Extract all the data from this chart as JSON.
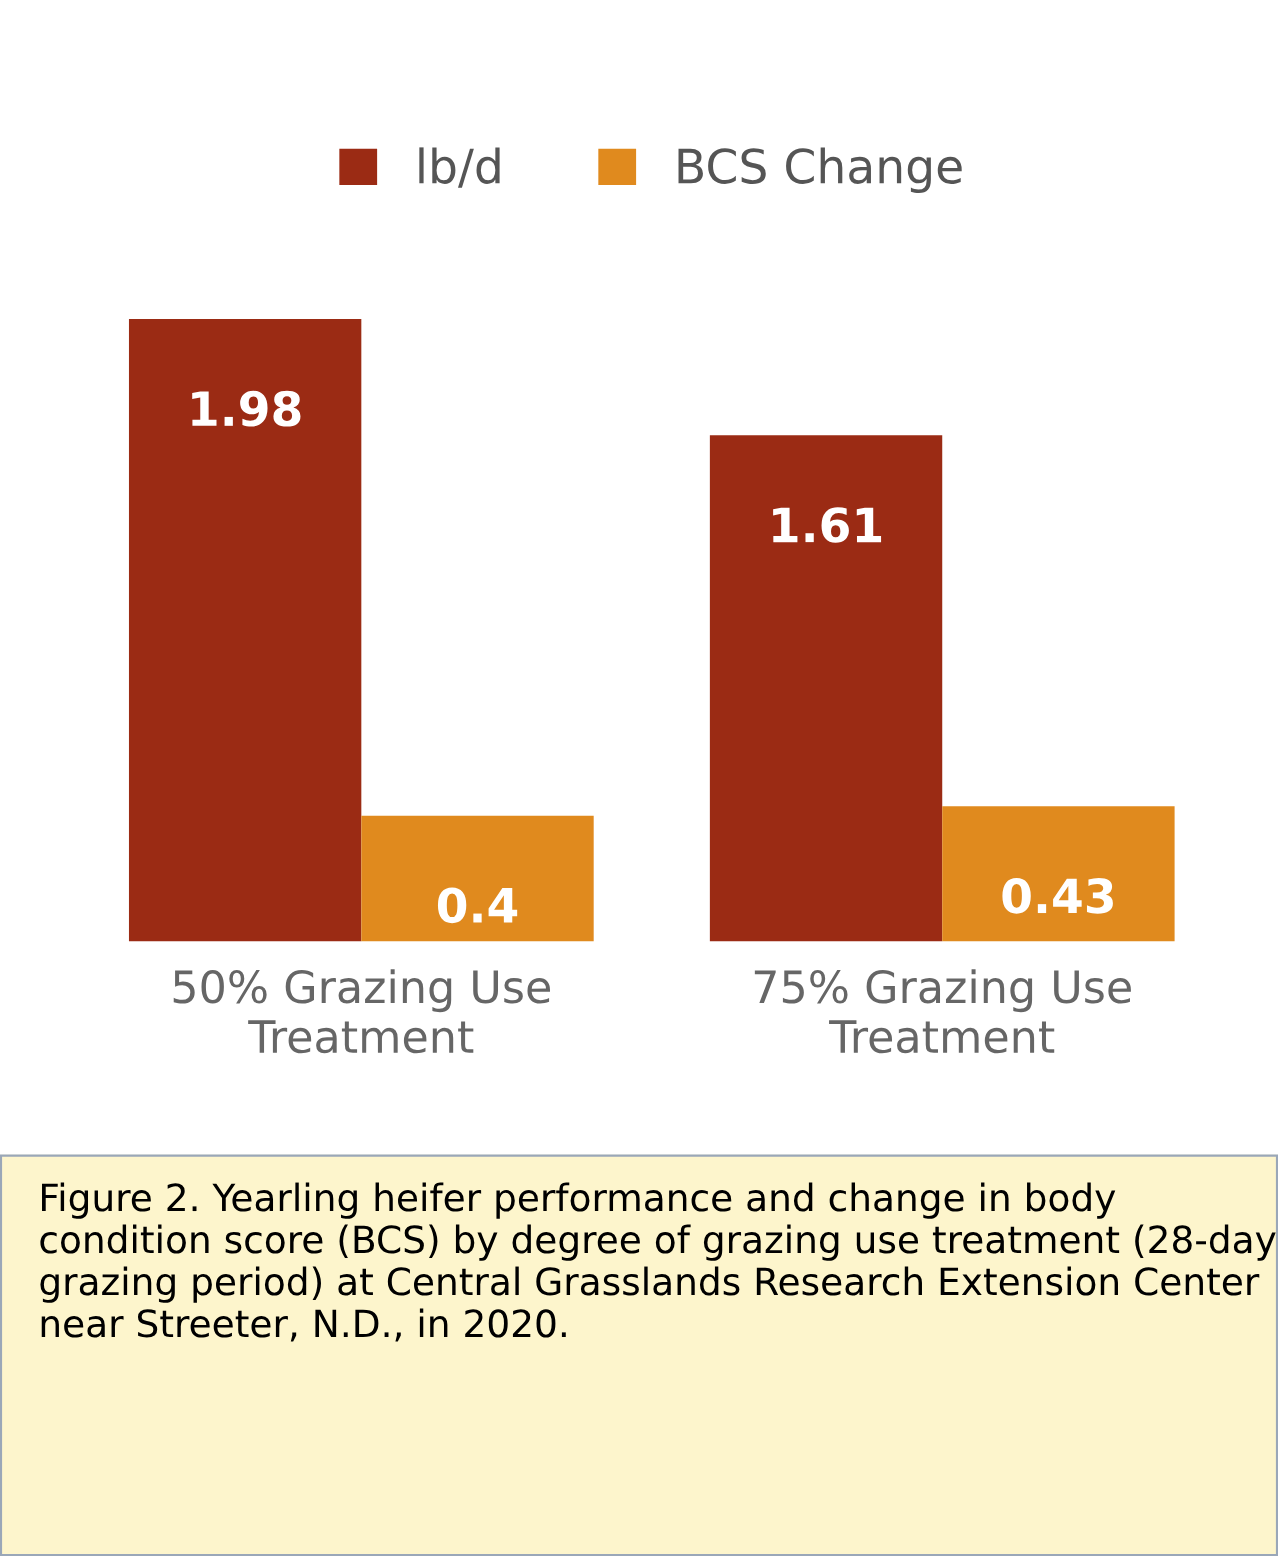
{
  "chart_data": {
    "type": "bar",
    "categories": [
      "50% Grazing Use\nTreatment",
      "75% Grazing Use\nTreatment"
    ],
    "series": [
      {
        "name": "lb/d",
        "color": "#9b2b14",
        "values": [
          1.98,
          1.61
        ]
      },
      {
        "name": "BCS Change",
        "color": "#e08a1e",
        "values": [
          0.4,
          0.43
        ]
      }
    ],
    "data_labels": true,
    "legend": "top",
    "grid": false,
    "annotations": [
      "Figure 2. Yearling heifer performance and change in body condition score (BCS) by degree of grazing use treatment (28-day grazing period) at Central Grasslands Research Extension Center near Streeter, N.D., in 2020."
    ]
  }
}
